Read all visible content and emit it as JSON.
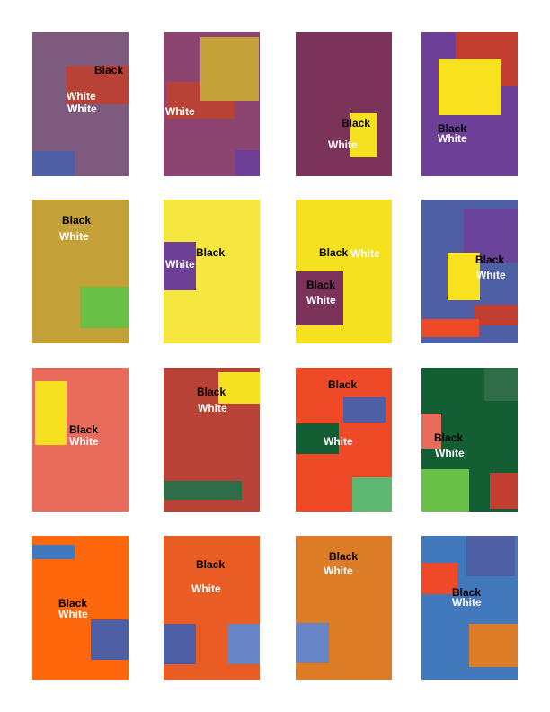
{
  "labels": {
    "black": "Black",
    "white": "White"
  },
  "colors": {
    "mauve": "#7D5A7E",
    "plum": "#8C4470",
    "wine": "#7B3359",
    "purple": "#6E3F96",
    "olive_gold": "#C3A138",
    "lemon": "#F6E640",
    "yellow": "#F5E120",
    "slate_blue": "#4F5FA6",
    "salmon": "#E86B5B",
    "brick": "#B84235",
    "vermilion": "#EE4A27",
    "forest": "#135F33",
    "orange": "#FF670D",
    "tangerine": "#E95D25",
    "amber": "#DC7C26",
    "cobalt": "#4279BD",
    "red": "#C13E31",
    "green_lime": "#6BC147",
    "green_teal": "#2E6D48",
    "green_mint": "#5DB872",
    "periwinkle": "#6784C4",
    "blue": "#4A5BAA",
    "violet": "#6A439A",
    "yellow_bright": "#F8E21F"
  },
  "cards": [
    {
      "background": "#7D5A7E"
    },
    {
      "background": "#8C4470"
    },
    {
      "background": "#7B3359"
    },
    {
      "background": "#6E3F96"
    },
    {
      "background": "#C3A138"
    },
    {
      "background": "#F6E640"
    },
    {
      "background": "#F5E120"
    },
    {
      "background": "#4F5FA6"
    },
    {
      "background": "#E86B5B"
    },
    {
      "background": "#B84235"
    },
    {
      "background": "#EE4A27"
    },
    {
      "background": "#135F33"
    },
    {
      "background": "#FF670D"
    },
    {
      "background": "#E95D25"
    },
    {
      "background": "#DC7C26"
    },
    {
      "background": "#4279BD"
    }
  ]
}
